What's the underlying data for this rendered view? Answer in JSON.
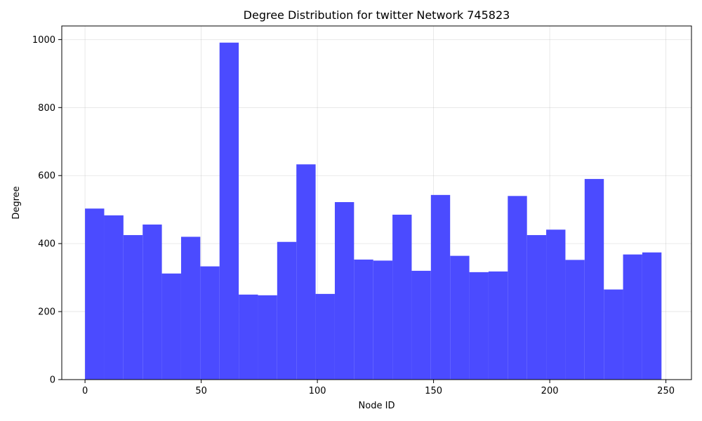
{
  "chart_data": {
    "type": "bar",
    "title": "Degree Distribution for twitter Network 745823",
    "xlabel": "Node ID",
    "ylabel": "Degree",
    "xlim": [
      -10,
      261
    ],
    "ylim": [
      0,
      1040
    ],
    "xticks": [
      0,
      50,
      100,
      150,
      200,
      250
    ],
    "yticks": [
      0,
      200,
      400,
      600,
      800,
      1000
    ],
    "grid": true,
    "bar_color": "#4b4bff",
    "bin_start": 0,
    "bin_width": 8.27,
    "values": [
      503,
      483,
      425,
      456,
      312,
      420,
      333,
      991,
      250,
      248,
      405,
      633,
      252,
      522,
      353,
      350,
      485,
      320,
      543,
      364,
      316,
      318,
      540,
      425,
      441,
      352,
      590,
      265,
      368,
      374
    ]
  }
}
